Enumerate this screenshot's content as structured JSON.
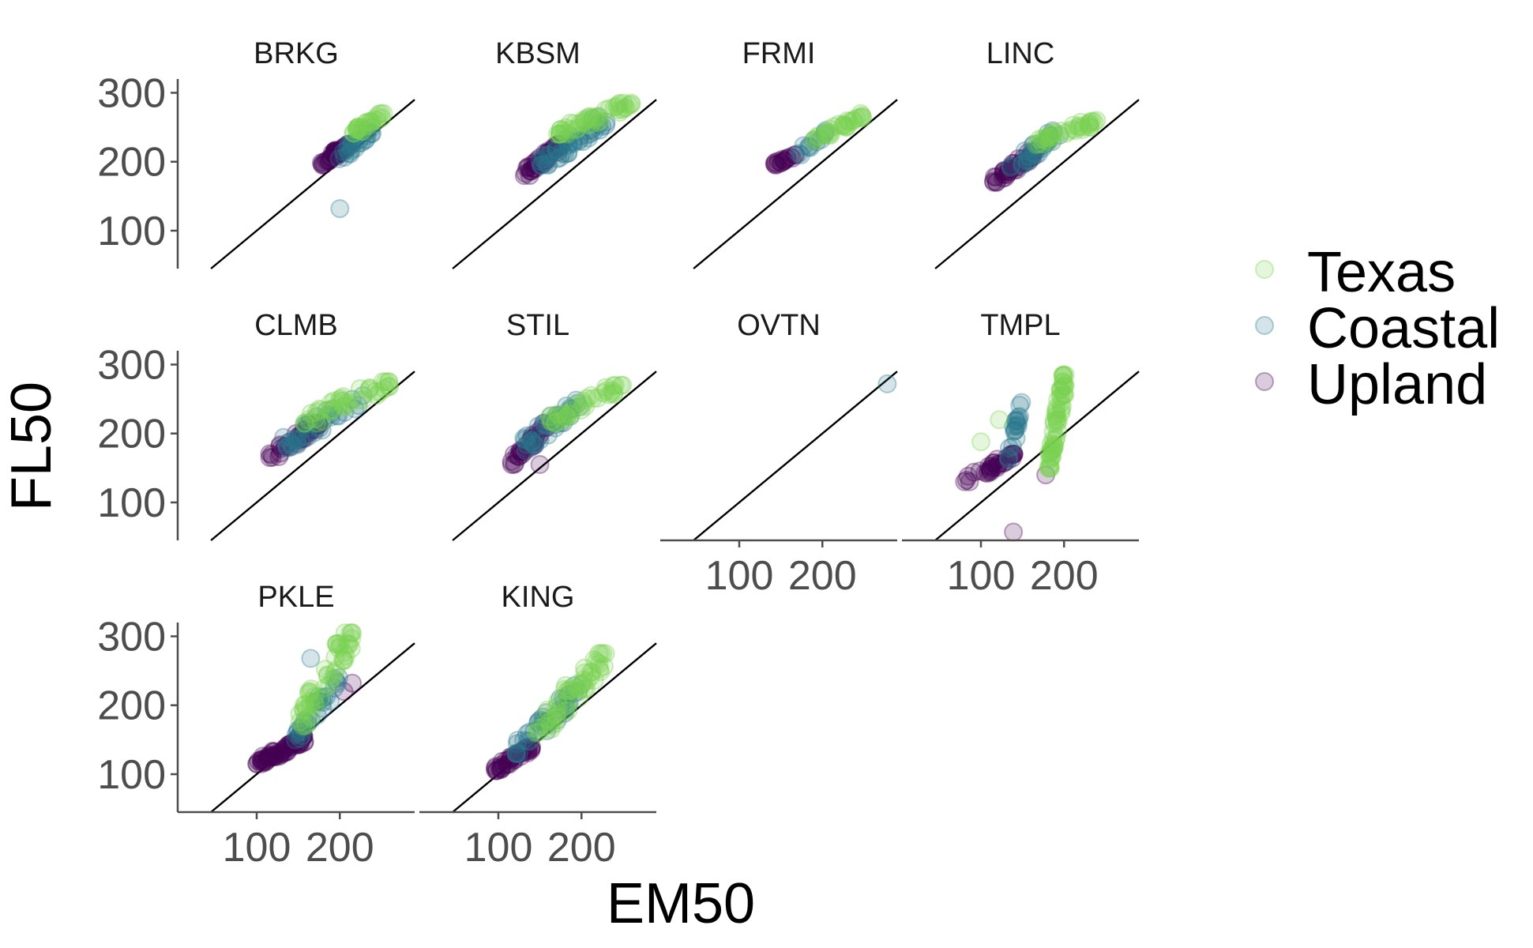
{
  "chart_data": {
    "type": "scatter",
    "xlabel": "EM50",
    "ylabel": "FL50",
    "xlim": [
      5,
      290
    ],
    "ylim": [
      45,
      320
    ],
    "x_ticks": [
      100,
      200
    ],
    "y_ticks": [
      100,
      200,
      300
    ],
    "reference_line": "y = x",
    "legend_position": "right",
    "colors": {
      "Texas": "#7AD151",
      "Coastal": "#2A788E",
      "Upland": "#440154"
    },
    "legend": [
      {
        "name": "Texas",
        "color": "#7AD151"
      },
      {
        "name": "Coastal",
        "color": "#2A788E"
      },
      {
        "name": "Upland",
        "color": "#440154"
      }
    ],
    "panels": [
      {
        "name": "BRKG",
        "clusters": [
          {
            "group": "Upland",
            "x": [
              175,
              210
            ],
            "y": [
              195,
              225
            ],
            "n": 40
          },
          {
            "group": "Coastal",
            "x": [
              195,
              240
            ],
            "y": [
              200,
              250
            ],
            "n": 25
          },
          {
            "group": "Texas",
            "x": [
              215,
              255
            ],
            "y": [
              240,
              270
            ],
            "n": 25
          }
        ],
        "points": [
          {
            "group": "Coastal",
            "x": 200,
            "y": 132
          }
        ]
      },
      {
        "name": "KBSM",
        "clusters": [
          {
            "group": "Upland",
            "x": [
              130,
              175
            ],
            "y": [
              180,
              225
            ],
            "n": 45
          },
          {
            "group": "Coastal",
            "x": [
              150,
              230
            ],
            "y": [
              195,
              265
            ],
            "n": 45
          },
          {
            "group": "Texas",
            "x": [
              170,
              260
            ],
            "y": [
              240,
              285
            ],
            "n": 45
          }
        ],
        "points": []
      },
      {
        "name": "FRMI",
        "clusters": [
          {
            "group": "Upland",
            "x": [
              140,
              170
            ],
            "y": [
              195,
              210
            ],
            "n": 18
          },
          {
            "group": "Coastal",
            "x": [
              170,
              205
            ],
            "y": [
              210,
              245
            ],
            "n": 12
          },
          {
            "group": "Texas",
            "x": [
              190,
              250
            ],
            "y": [
              230,
              270
            ],
            "n": 28
          }
        ],
        "points": []
      },
      {
        "name": "LINC",
        "clusters": [
          {
            "group": "Upland",
            "x": [
              115,
              165
            ],
            "y": [
              170,
              215
            ],
            "n": 40
          },
          {
            "group": "Coastal",
            "x": [
              135,
              195
            ],
            "y": [
              190,
              245
            ],
            "n": 30
          },
          {
            "group": "Texas",
            "x": [
              160,
              240
            ],
            "y": [
              225,
              260
            ],
            "n": 35
          }
        ],
        "points": []
      },
      {
        "name": "CLMB",
        "clusters": [
          {
            "group": "Upland",
            "x": [
              115,
              175
            ],
            "y": [
              165,
              215
            ],
            "n": 40
          },
          {
            "group": "Coastal",
            "x": [
              130,
              230
            ],
            "y": [
              180,
              255
            ],
            "n": 35
          },
          {
            "group": "Texas",
            "x": [
              155,
              260
            ],
            "y": [
              215,
              275
            ],
            "n": 40
          }
        ],
        "points": []
      },
      {
        "name": "STIL",
        "clusters": [
          {
            "group": "Upland",
            "x": [
              115,
              160
            ],
            "y": [
              155,
              215
            ],
            "n": 35
          },
          {
            "group": "Coastal",
            "x": [
              125,
              200
            ],
            "y": [
              175,
              250
            ],
            "n": 35
          },
          {
            "group": "Texas",
            "x": [
              160,
              250
            ],
            "y": [
              215,
              270
            ],
            "n": 35
          }
        ],
        "points": [
          {
            "group": "Upland",
            "x": 150,
            "y": 155
          }
        ]
      },
      {
        "name": "OVTN",
        "clusters": [],
        "points": [
          {
            "group": "Coastal",
            "x": 278,
            "y": 272
          }
        ]
      },
      {
        "name": "TMPL",
        "clusters": [
          {
            "group": "Upland",
            "x": [
              80,
              140
            ],
            "y": [
              130,
              170
            ],
            "n": 35
          },
          {
            "group": "Coastal",
            "x": [
              130,
              150
            ],
            "y": [
              150,
              245
            ],
            "n": 20
          },
          {
            "group": "Texas",
            "x": [
              180,
              202
            ],
            "y": [
              150,
              285
            ],
            "n": 60
          }
        ],
        "points": [
          {
            "group": "Texas",
            "x": 100,
            "y": 188
          },
          {
            "group": "Texas",
            "x": 122,
            "y": 220
          },
          {
            "group": "Upland",
            "x": 139,
            "y": 57
          },
          {
            "group": "Upland",
            "x": 178,
            "y": 140
          }
        ]
      },
      {
        "name": "PKLE",
        "clusters": [
          {
            "group": "Upland",
            "x": [
              100,
              160
            ],
            "y": [
              115,
              155
            ],
            "n": 70
          },
          {
            "group": "Coastal",
            "x": [
              145,
              200
            ],
            "y": [
              150,
              240
            ],
            "n": 30
          },
          {
            "group": "Texas",
            "x": [
              150,
              215
            ],
            "y": [
              170,
              305
            ],
            "n": 50
          }
        ],
        "points": [
          {
            "group": "Upland",
            "x": 215,
            "y": 232
          },
          {
            "group": "Upland",
            "x": 205,
            "y": 220
          },
          {
            "group": "Coastal",
            "x": 165,
            "y": 268
          }
        ]
      },
      {
        "name": "KING",
        "clusters": [
          {
            "group": "Upland",
            "x": [
              95,
              140
            ],
            "y": [
              105,
              140
            ],
            "n": 40
          },
          {
            "group": "Coastal",
            "x": [
              120,
              200
            ],
            "y": [
              130,
              230
            ],
            "n": 40
          },
          {
            "group": "Texas",
            "x": [
              145,
              230
            ],
            "y": [
              160,
              275
            ],
            "n": 50
          }
        ],
        "points": []
      }
    ]
  }
}
